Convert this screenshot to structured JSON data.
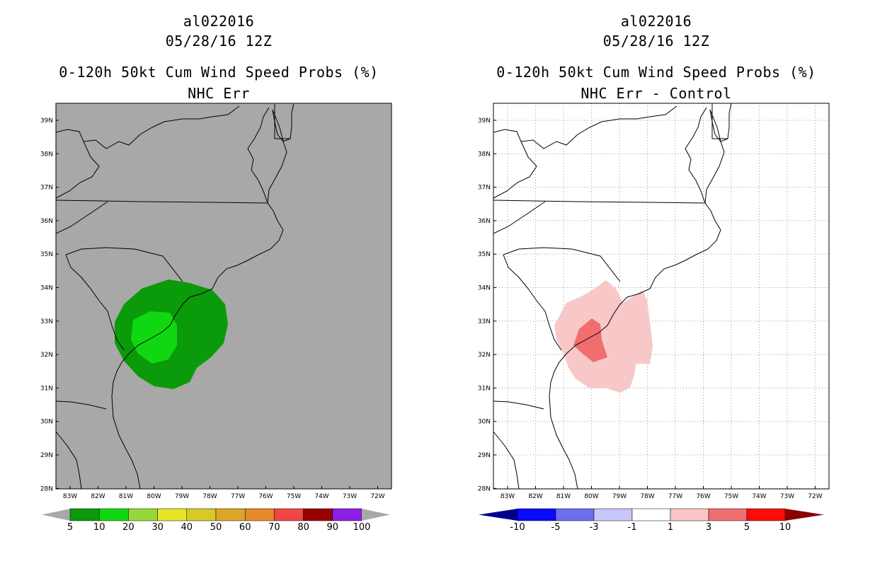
{
  "left": {
    "storm": "al022016",
    "date": "05/28/16 12Z",
    "product": "0-120h 50kt Cum Wind Speed Probs (%)",
    "subtitle": "NHC Err",
    "lat_labels": [
      "39N",
      "38N",
      "37N",
      "36N",
      "35N",
      "34N",
      "33N",
      "32N",
      "31N",
      "30N",
      "29N",
      "28N"
    ],
    "lon_labels": [
      "83W",
      "82W",
      "81W",
      "80W",
      "79W",
      "78W",
      "77W",
      "76W",
      "75W",
      "74W",
      "73W",
      "72W"
    ],
    "colorbar": {
      "colors": [
        "#0a9a0a",
        "#10d810",
        "#96d83a",
        "#e6e628",
        "#d8c828",
        "#dca628",
        "#e6882a",
        "#f04646",
        "#960000",
        "#8c1ee6"
      ],
      "labels": [
        "5",
        "10",
        "20",
        "30",
        "40",
        "50",
        "60",
        "70",
        "80",
        "90",
        "100"
      ]
    }
  },
  "right": {
    "storm": "al022016",
    "date": "05/28/16 12Z",
    "product": "0-120h 50kt Cum Wind Speed Probs (%)",
    "subtitle": "NHC Err - Control",
    "lat_labels": [
      "39N",
      "38N",
      "37N",
      "36N",
      "35N",
      "34N",
      "33N",
      "32N",
      "31N",
      "30N",
      "29N",
      "28N"
    ],
    "lon_labels": [
      "83W",
      "82W",
      "81W",
      "80W",
      "79W",
      "78W",
      "77W",
      "76W",
      "75W",
      "74W",
      "73W",
      "72W"
    ],
    "colorbar": {
      "colors": [
        "#00008c",
        "#0a0aff",
        "#6e6ef0",
        "#c8c8f8",
        "#ffffff",
        "#f8c8c8",
        "#f06e6e",
        "#ff0a0a",
        "#8c0000"
      ],
      "labels": [
        "-10",
        "-5",
        "-3",
        "-1",
        "1",
        "3",
        "5",
        "10"
      ]
    }
  }
}
